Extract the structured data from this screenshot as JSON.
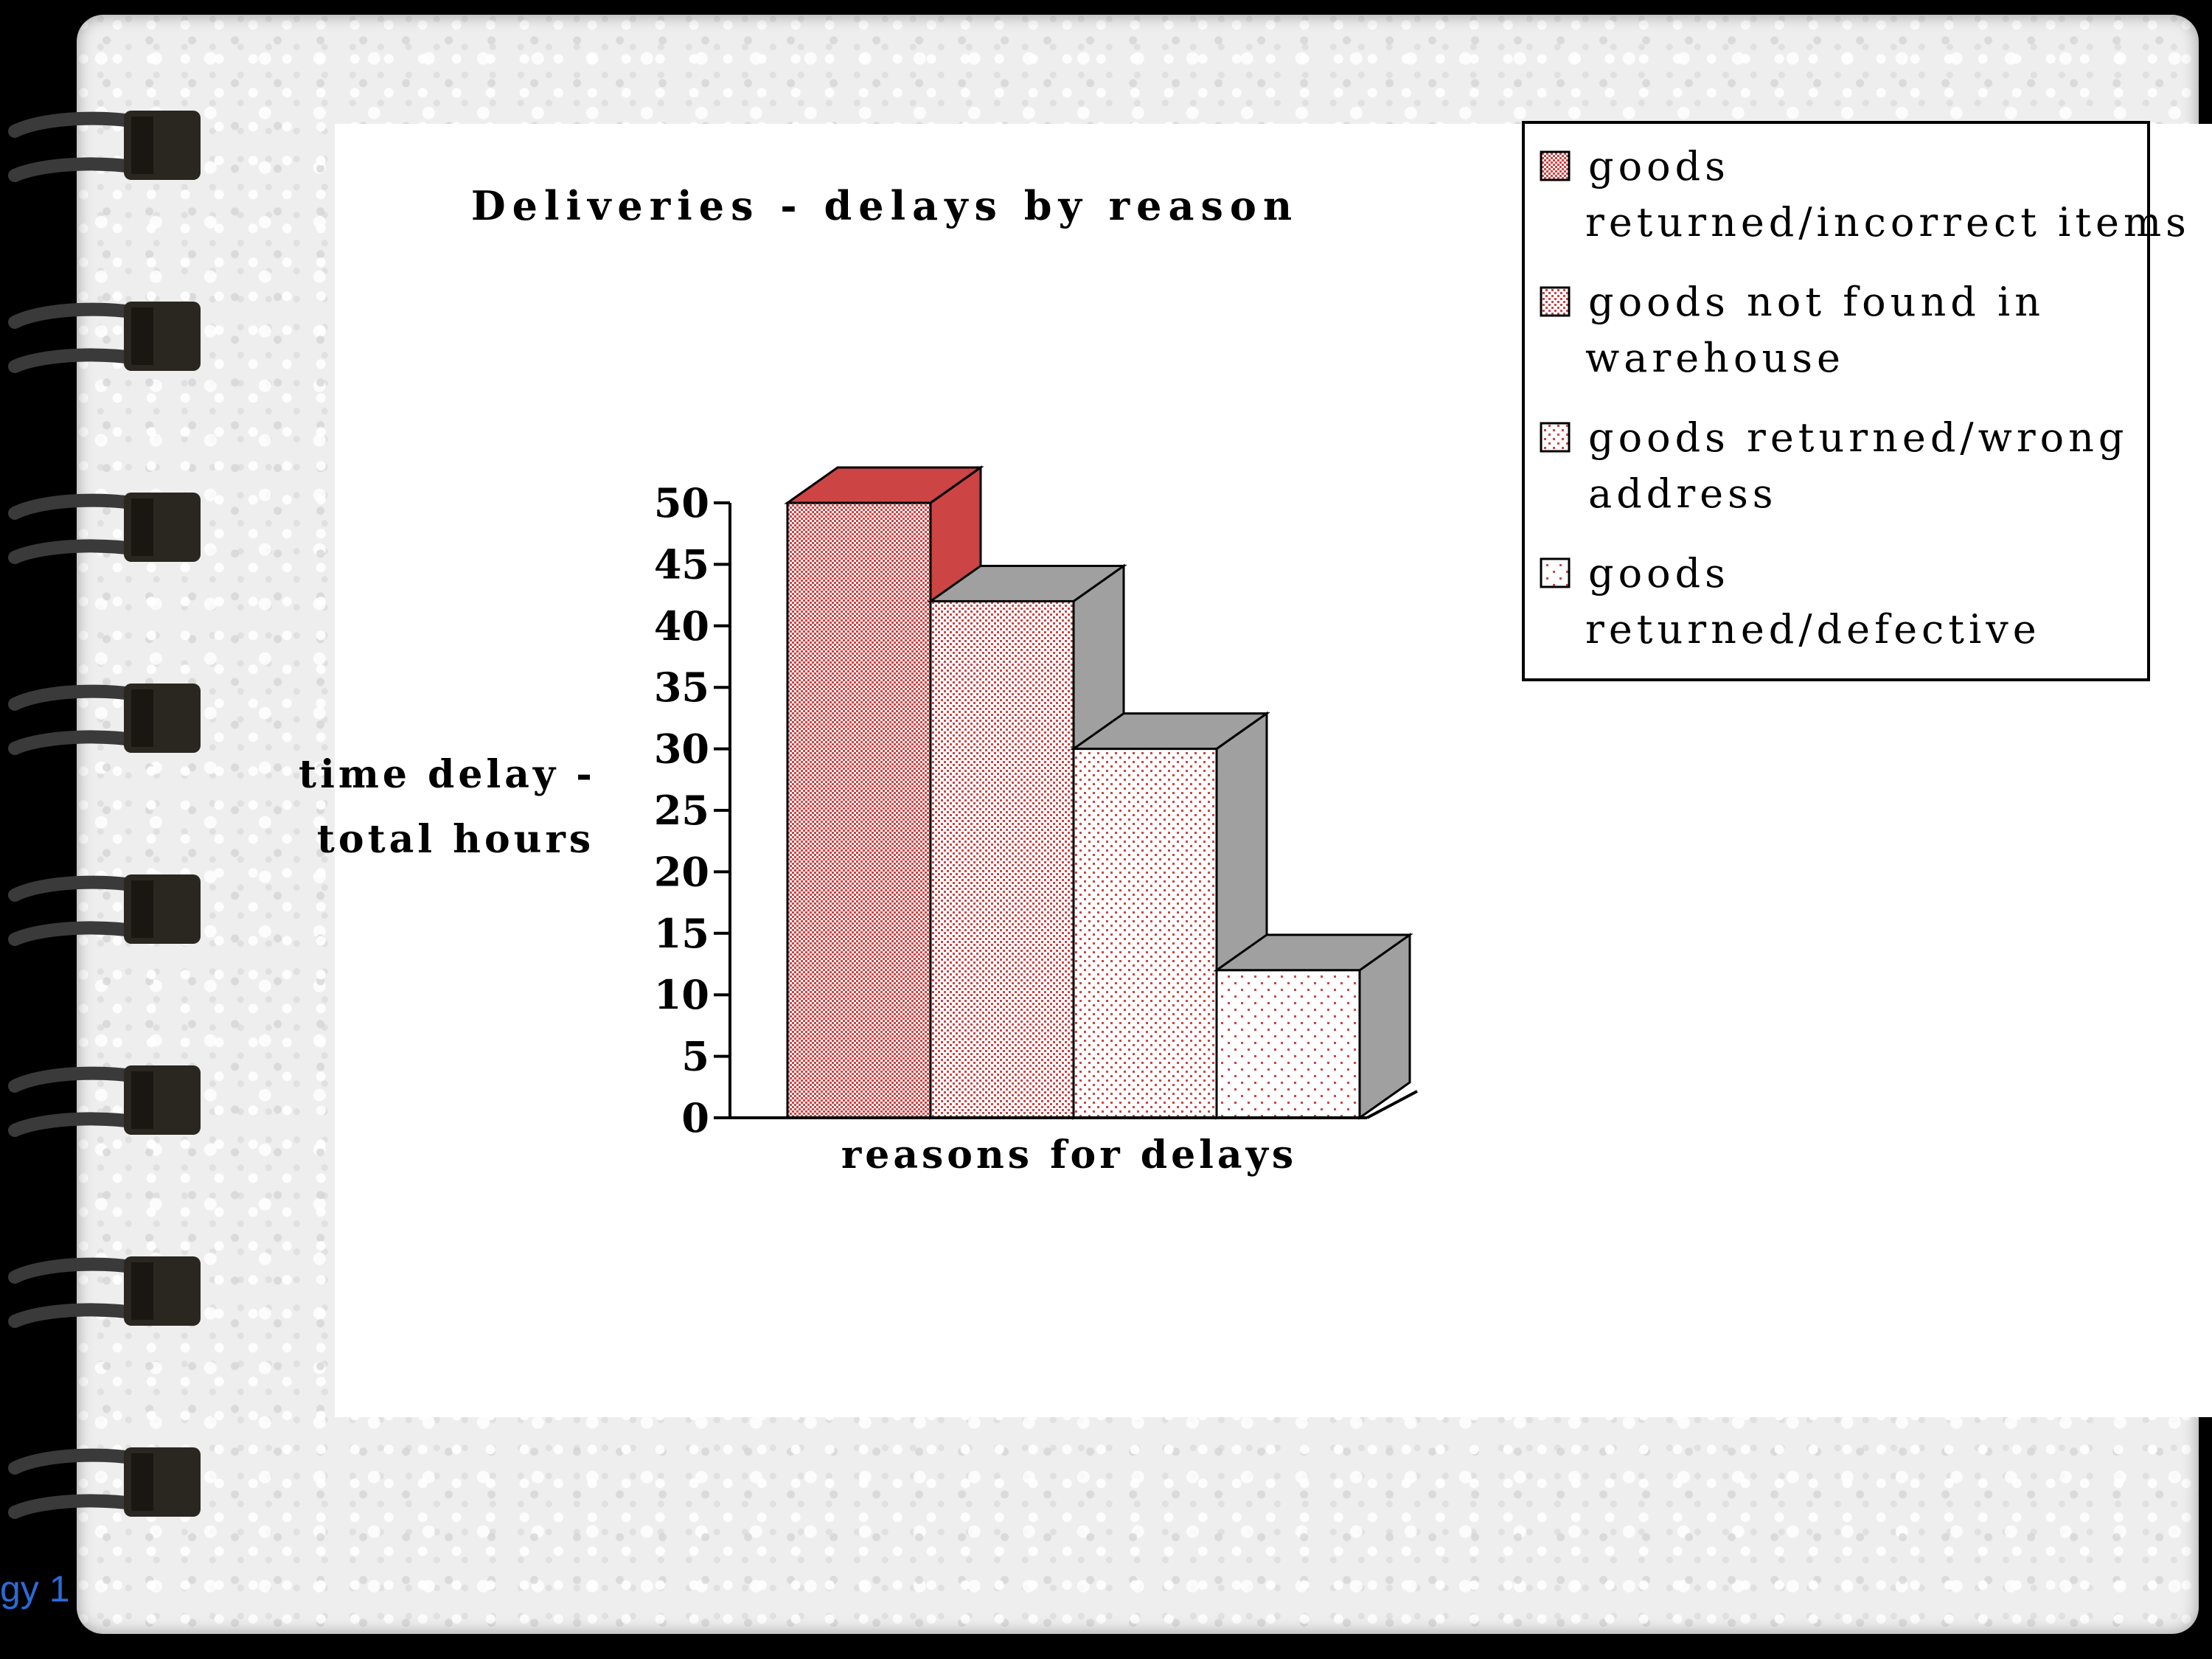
{
  "footer": {
    "text": "gy 1"
  },
  "colors": {
    "bar_fill": "#cc4444",
    "side_face": "#a0a0a0",
    "first_side_face": "#cc4444",
    "axis": "#000000",
    "footer_text": "#2a6bd8"
  },
  "chart_data": {
    "type": "bar",
    "title": "Deliveries - delays by reason",
    "xlabel": "reasons for delays",
    "ylabel": [
      "time delay -",
      "total hours"
    ],
    "ylim": [
      0,
      50
    ],
    "yticks": [
      "0",
      "5",
      "10",
      "15",
      "20",
      "25",
      "30",
      "35",
      "40",
      "45",
      "50"
    ],
    "three_d": true,
    "legend_position": "top-right",
    "series": [
      {
        "name": [
          "goods",
          "returned/incorrect items"
        ],
        "value": 50,
        "pattern": "dense"
      },
      {
        "name": [
          "goods not found in",
          "warehouse"
        ],
        "value": 42,
        "pattern": "medium"
      },
      {
        "name": [
          "goods returned/wrong",
          "address"
        ],
        "value": 30,
        "pattern": "sparse"
      },
      {
        "name": [
          "goods",
          "returned/defective"
        ],
        "value": 12,
        "pattern": "very-sparse"
      }
    ]
  }
}
